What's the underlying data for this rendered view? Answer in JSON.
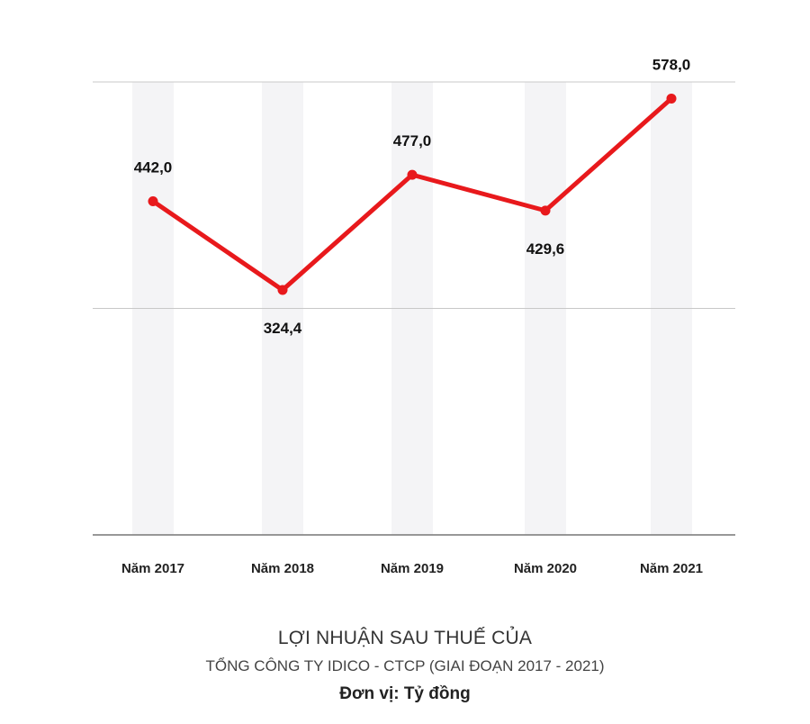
{
  "chart_data": {
    "type": "line",
    "categories": [
      "Năm 2017",
      "Năm 2018",
      "Năm 2019",
      "Năm 2020",
      "Năm 2021"
    ],
    "values": [
      442.0,
      324.4,
      477.0,
      429.6,
      578.0
    ],
    "value_labels": [
      "442,0",
      "324,4",
      "477,0",
      "429,6",
      "578,0"
    ],
    "ylim": [
      0,
      600
    ],
    "grid": true,
    "colors": {
      "line": "#e8191c",
      "grid": "#c8c8c8",
      "band": "#f4f4f6",
      "axis": "#777777"
    }
  },
  "caption": {
    "title": "LỢI NHUẬN SAU THUẾ CỦA",
    "subtitle": "TỔNG CÔNG TY IDICO - CTCP (GIAI ĐOẠN 2017 - 2021)",
    "unit": "Đơn vị: Tỷ đồng"
  }
}
